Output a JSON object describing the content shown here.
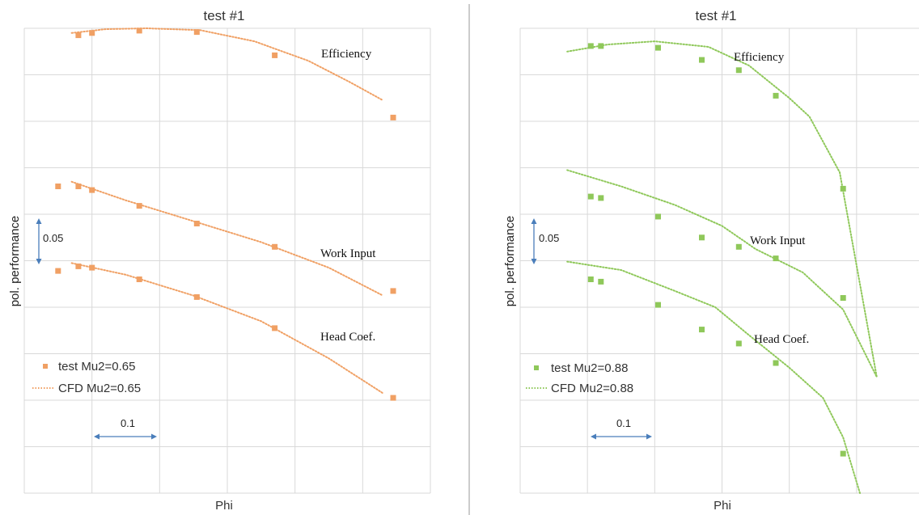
{
  "chart_data": [
    {
      "type": "scatter",
      "title": "test #1",
      "xlabel": "Phi",
      "ylabel": "pol. performance",
      "grid": true,
      "legend_position": "bottom-left",
      "xlim": [
        0,
        6
      ],
      "ylim": [
        0,
        10
      ],
      "scale_bars": {
        "vertical_label": "0.05",
        "horizontal_label": "0.1"
      },
      "curve_labels": [
        "Efficiency",
        "Work Input",
        "Head Coef."
      ],
      "colors": {
        "marker": "#f0a064",
        "line": "#f0a064",
        "arrow": "#4a7ebb"
      },
      "legend": {
        "marker_label": "test Mu2=0.65",
        "line_label": "CFD Mu2=0.65"
      },
      "series": [
        {
          "group": "Efficiency",
          "kind": "test",
          "x": [
            0.8,
            1.0,
            1.7,
            2.55,
            3.7,
            5.45
          ],
          "y": [
            9.85,
            9.9,
            9.95,
            9.92,
            9.42,
            8.08
          ]
        },
        {
          "group": "Efficiency",
          "kind": "cfd",
          "x": [
            0.7,
            1.2,
            1.8,
            2.6,
            3.4,
            4.2,
            4.8,
            5.3
          ],
          "y": [
            9.9,
            9.98,
            10.0,
            9.96,
            9.72,
            9.3,
            8.85,
            8.45
          ]
        },
        {
          "group": "Work Input",
          "kind": "test",
          "x": [
            0.5,
            0.8,
            1.0,
            1.7,
            2.55,
            3.7,
            5.45
          ],
          "y": [
            6.6,
            6.6,
            6.52,
            6.18,
            5.8,
            5.3,
            4.35
          ]
        },
        {
          "group": "Work Input",
          "kind": "cfd",
          "x": [
            0.7,
            1.5,
            2.5,
            3.5,
            4.5,
            5.3
          ],
          "y": [
            6.7,
            6.3,
            5.85,
            5.4,
            4.85,
            4.25
          ]
        },
        {
          "group": "Head Coef.",
          "kind": "test",
          "x": [
            0.5,
            0.8,
            1.0,
            1.7,
            2.55,
            3.7,
            5.45
          ],
          "y": [
            4.78,
            4.88,
            4.85,
            4.6,
            4.22,
            3.55,
            2.05
          ]
        },
        {
          "group": "Head Coef.",
          "kind": "cfd",
          "x": [
            0.7,
            1.5,
            2.5,
            3.5,
            4.5,
            5.3
          ],
          "y": [
            4.95,
            4.7,
            4.25,
            3.7,
            2.9,
            2.15
          ]
        }
      ]
    },
    {
      "type": "scatter",
      "title": "test #1",
      "xlabel": "Phi",
      "ylabel": "pol. performance",
      "grid": true,
      "legend_position": "bottom-left",
      "xlim": [
        0,
        6
      ],
      "ylim": [
        0,
        10
      ],
      "scale_bars": {
        "vertical_label": "0.05",
        "horizontal_label": "0.1"
      },
      "curve_labels": [
        "Efficiency",
        "Work Input",
        "Head Coef."
      ],
      "colors": {
        "marker": "#8fc85a",
        "line": "#8fc85a",
        "arrow": "#4a7ebb"
      },
      "legend": {
        "marker_label": "test Mu2=0.88",
        "line_label": "CFD Mu2=0.88"
      },
      "series": [
        {
          "group": "Efficiency",
          "kind": "test",
          "x": [
            1.05,
            1.2,
            2.05,
            2.7,
            3.25,
            3.8,
            4.8
          ],
          "y": [
            9.62,
            9.62,
            9.58,
            9.32,
            9.1,
            8.55,
            6.55
          ]
        },
        {
          "group": "Efficiency",
          "kind": "cfd",
          "x": [
            0.7,
            1.3,
            2.0,
            2.8,
            3.4,
            4.0,
            4.3,
            4.75,
            5.3
          ],
          "y": [
            9.5,
            9.65,
            9.72,
            9.6,
            9.2,
            8.5,
            8.1,
            6.9,
            2.5
          ]
        },
        {
          "group": "Work Input",
          "kind": "test",
          "x": [
            1.05,
            1.2,
            2.05,
            2.7,
            3.25,
            3.8,
            4.8
          ],
          "y": [
            6.38,
            6.35,
            5.95,
            5.5,
            5.3,
            5.05,
            4.2
          ]
        },
        {
          "group": "Work Input",
          "kind": "cfd",
          "x": [
            0.7,
            1.5,
            2.3,
            3.0,
            3.5,
            4.2,
            4.8,
            5.3
          ],
          "y": [
            6.95,
            6.6,
            6.2,
            5.75,
            5.25,
            4.75,
            3.95,
            2.5
          ]
        },
        {
          "group": "Head Coef.",
          "kind": "test",
          "x": [
            1.05,
            1.2,
            2.05,
            2.7,
            3.25,
            3.8,
            4.8
          ],
          "y": [
            4.6,
            4.55,
            4.05,
            3.52,
            3.22,
            2.8,
            0.85
          ]
        },
        {
          "group": "Head Coef.",
          "kind": "cfd",
          "x": [
            0.7,
            1.5,
            2.3,
            2.9,
            3.4,
            4.0,
            4.5,
            4.8,
            5.05
          ],
          "y": [
            4.98,
            4.8,
            4.35,
            4.0,
            3.4,
            2.7,
            2.05,
            1.2,
            0
          ]
        }
      ]
    }
  ]
}
